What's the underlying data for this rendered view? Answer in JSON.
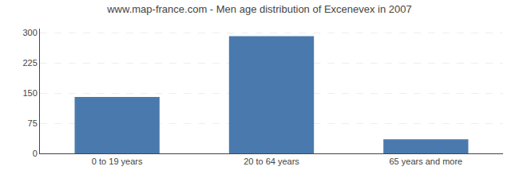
{
  "chart_data": {
    "type": "bar",
    "title": "www.map-france.com - Men age distribution of Excenevex in 2007",
    "categories": [
      "0 to 19 years",
      "20 to 64 years",
      "65 years and more"
    ],
    "values": [
      140,
      291,
      35
    ],
    "color": "#4a7aad",
    "ylim": [
      0,
      310
    ],
    "yticks": [
      0,
      75,
      150,
      225,
      300
    ],
    "grid": true
  }
}
